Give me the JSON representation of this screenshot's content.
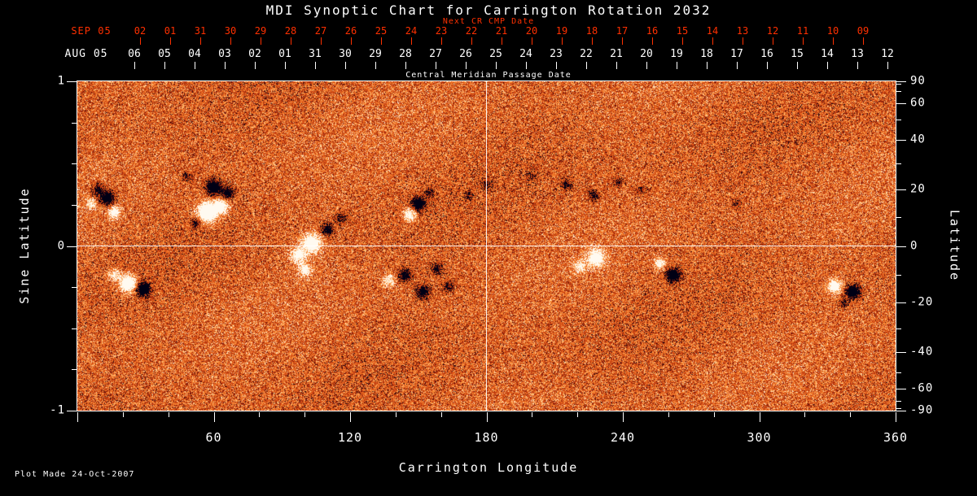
{
  "title": "MDI Synoptic Chart for Carrington Rotation 2032",
  "footer": {
    "plot_made": "Plot Made 24-Oct-2007"
  },
  "chart_data": {
    "type": "heatmap",
    "title": "MDI Synoptic Chart for Carrington Rotation 2032",
    "xlabel": "Carrington Longitude",
    "ylabel_left": "Sine Latitude",
    "ylabel_right": "Latitude",
    "xlim": [
      0,
      360
    ],
    "x_major_ticks": [
      60,
      120,
      180,
      240,
      300,
      360
    ],
    "x_minor_step": 20,
    "sine_ticks": [
      1,
      0,
      -1
    ],
    "latitude_ticks": [
      90,
      60,
      40,
      20,
      0,
      -20,
      -40,
      -60,
      -90
    ],
    "latitude_minor_ticks": [
      80,
      70,
      50,
      30,
      10,
      -10,
      -30,
      -50,
      -70,
      -80
    ],
    "grid_lines": {
      "longitude": 180,
      "latitude": 0
    },
    "top_axis_next_cr": {
      "label": "Next CR CMP Date",
      "prefix": "SEP 05",
      "dates": [
        "02",
        "01",
        "31",
        "30",
        "29",
        "28",
        "27",
        "26",
        "25",
        "24",
        "23",
        "22",
        "21",
        "20",
        "19",
        "18",
        "17",
        "16",
        "15",
        "14",
        "13",
        "12",
        "11",
        "10",
        "09"
      ]
    },
    "top_axis_cmp": {
      "label": "Central Meridian Passage Date",
      "prefix": "AUG 05",
      "dates": [
        "06",
        "05",
        "04",
        "03",
        "02",
        "01",
        "31",
        "30",
        "29",
        "28",
        "27",
        "26",
        "25",
        "24",
        "23",
        "22",
        "21",
        "20",
        "19",
        "18",
        "17",
        "16",
        "15",
        "14",
        "13",
        "12"
      ]
    },
    "colors": {
      "background": "#000000",
      "axis": "#ffffff",
      "next_cr_axis": "#ff3000",
      "map_base": "#df5019",
      "region_positive": "#fff8e8",
      "region_negative": "#000018"
    },
    "palette": [
      [
        0.0,
        "#000014"
      ],
      [
        0.1,
        "#1e0512"
      ],
      [
        0.16,
        "#7a1408"
      ],
      [
        0.3,
        "#c23c10"
      ],
      [
        0.5,
        "#e05a1c"
      ],
      [
        0.65,
        "#f07828"
      ],
      [
        0.78,
        "#ff9a44"
      ],
      [
        0.88,
        "#ffc888"
      ],
      [
        1.0,
        "#fffaf0"
      ]
    ],
    "active_regions": [
      {
        "lon": 13,
        "lat": 17,
        "sigma": 2.2,
        "amp": -1.0
      },
      {
        "lon": 9,
        "lat": 20,
        "sigma": 1.8,
        "amp": -0.7
      },
      {
        "lon": 16,
        "lat": 12,
        "sigma": 1.8,
        "amp": 0.9
      },
      {
        "lon": 6,
        "lat": 15,
        "sigma": 1.4,
        "amp": 0.6
      },
      {
        "lon": 57,
        "lat": 12,
        "sigma": 2.8,
        "amp": 1.5
      },
      {
        "lon": 63,
        "lat": 14,
        "sigma": 2.2,
        "amp": 1.0
      },
      {
        "lon": 60,
        "lat": 21,
        "sigma": 2.2,
        "amp": -1.2
      },
      {
        "lon": 66,
        "lat": 19,
        "sigma": 1.8,
        "amp": -0.9
      },
      {
        "lon": 52,
        "lat": 8,
        "sigma": 1.4,
        "amp": -0.7
      },
      {
        "lon": 48,
        "lat": 25,
        "sigma": 1.4,
        "amp": -0.5
      },
      {
        "lon": 103,
        "lat": 1,
        "sigma": 2.8,
        "amp": 1.2
      },
      {
        "lon": 97,
        "lat": -3,
        "sigma": 2.2,
        "amp": 0.9
      },
      {
        "lon": 110,
        "lat": 6,
        "sigma": 1.8,
        "amp": -0.8
      },
      {
        "lon": 116,
        "lat": 10,
        "sigma": 1.6,
        "amp": -0.6
      },
      {
        "lon": 150,
        "lat": 15,
        "sigma": 2.0,
        "amp": -1.1
      },
      {
        "lon": 146,
        "lat": 11,
        "sigma": 1.8,
        "amp": 0.9
      },
      {
        "lon": 155,
        "lat": 19,
        "sigma": 1.4,
        "amp": -0.6
      },
      {
        "lon": 22,
        "lat": -13,
        "sigma": 2.5,
        "amp": 1.3
      },
      {
        "lon": 29,
        "lat": -15,
        "sigma": 2.0,
        "amp": -1.2
      },
      {
        "lon": 16,
        "lat": -10,
        "sigma": 1.6,
        "amp": 0.7
      },
      {
        "lon": 100,
        "lat": -8,
        "sigma": 2.0,
        "amp": 0.8
      },
      {
        "lon": 137,
        "lat": -12,
        "sigma": 1.8,
        "amp": 0.7
      },
      {
        "lon": 144,
        "lat": -10,
        "sigma": 2.0,
        "amp": -0.8
      },
      {
        "lon": 152,
        "lat": -16,
        "sigma": 2.0,
        "amp": -0.9
      },
      {
        "lon": 158,
        "lat": -8,
        "sigma": 1.6,
        "amp": -0.7
      },
      {
        "lon": 163,
        "lat": -14,
        "sigma": 1.6,
        "amp": -0.6
      },
      {
        "lon": 228,
        "lat": -4,
        "sigma": 2.5,
        "amp": 1.1
      },
      {
        "lon": 221,
        "lat": -7,
        "sigma": 1.8,
        "amp": 0.7
      },
      {
        "lon": 262,
        "lat": -10,
        "sigma": 2.0,
        "amp": -1.2
      },
      {
        "lon": 256,
        "lat": -6,
        "sigma": 1.6,
        "amp": 0.8
      },
      {
        "lon": 215,
        "lat": 22,
        "sigma": 1.6,
        "amp": -0.6
      },
      {
        "lon": 227,
        "lat": 18,
        "sigma": 1.6,
        "amp": -0.6
      },
      {
        "lon": 238,
        "lat": 23,
        "sigma": 1.4,
        "amp": -0.5
      },
      {
        "lon": 248,
        "lat": 20,
        "sigma": 1.4,
        "amp": -0.4
      },
      {
        "lon": 333,
        "lat": -14,
        "sigma": 2.0,
        "amp": 1.1
      },
      {
        "lon": 341,
        "lat": -16,
        "sigma": 2.0,
        "amp": -1.2
      },
      {
        "lon": 337,
        "lat": -20,
        "sigma": 1.4,
        "amp": -0.5
      },
      {
        "lon": 290,
        "lat": 15,
        "sigma": 1.3,
        "amp": -0.4
      },
      {
        "lon": 200,
        "lat": 25,
        "sigma": 1.3,
        "amp": -0.4
      },
      {
        "lon": 180,
        "lat": 22,
        "sigma": 1.3,
        "amp": -0.5
      },
      {
        "lon": 172,
        "lat": 18,
        "sigma": 1.3,
        "amp": -0.4
      }
    ]
  }
}
